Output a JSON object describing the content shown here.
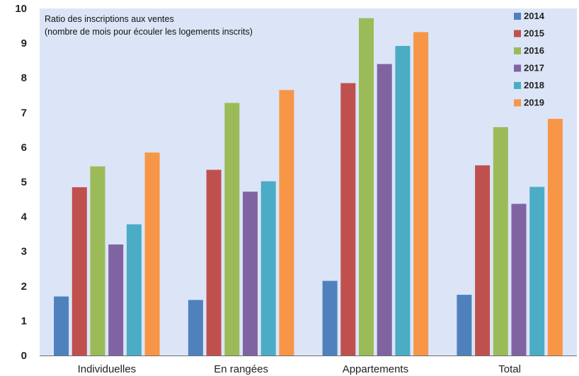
{
  "chart_data": {
    "type": "bar",
    "title": "Ratio des inscriptions aux ventes",
    "subtitle": "(nombre de mois pour écouler les logements inscrits)",
    "xlabel": "",
    "ylabel": "",
    "categories": [
      "Individuelles",
      "En rangées",
      "Appartements",
      "Total"
    ],
    "series": [
      {
        "name": "2014",
        "color": "#4f81bd",
        "values": [
          1.7,
          1.6,
          2.15,
          1.75
        ]
      },
      {
        "name": "2015",
        "color": "#c0504d",
        "values": [
          4.85,
          5.35,
          7.85,
          5.48
        ]
      },
      {
        "name": "2016",
        "color": "#9bbb59",
        "values": [
          5.45,
          7.28,
          9.72,
          6.58
        ]
      },
      {
        "name": "2017",
        "color": "#8064a2",
        "values": [
          3.2,
          4.72,
          8.4,
          4.37
        ]
      },
      {
        "name": "2018",
        "color": "#4bacc6",
        "values": [
          3.78,
          5.02,
          8.92,
          4.86
        ]
      },
      {
        "name": "2019",
        "color": "#f79646",
        "values": [
          5.85,
          7.65,
          9.32,
          6.82
        ]
      }
    ],
    "ylim": [
      0,
      10
    ],
    "yticks": [
      "0",
      "1",
      "2",
      "3",
      "4",
      "5",
      "6",
      "7",
      "8",
      "9",
      "10"
    ],
    "grid": false,
    "legend_position": "top-right",
    "plot_background": "#dbe5f7"
  }
}
